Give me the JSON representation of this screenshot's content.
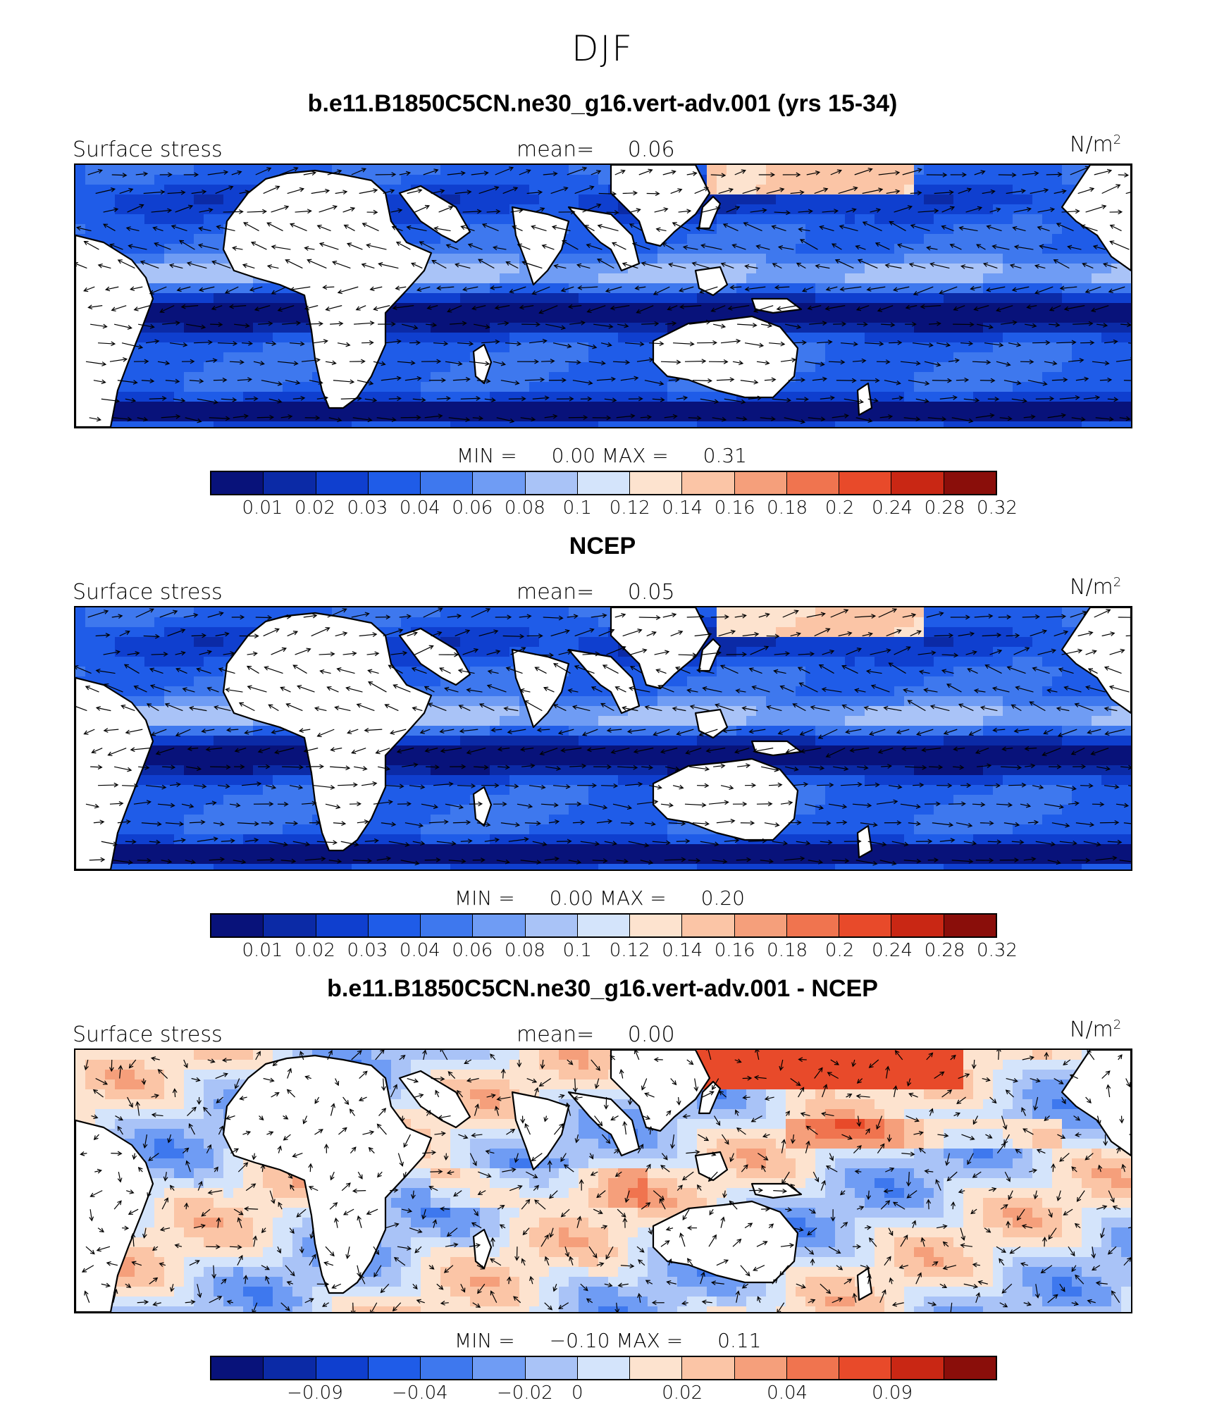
{
  "season": "DJF",
  "panels": [
    {
      "title": "b.e11.B1850C5CN.ne30_g16.vert-adv.001 (yrs 15-34)",
      "left_label": "Surface stress",
      "mean_label": "mean=",
      "mean_value": "0.06",
      "units_base": "N/m",
      "units_sup": "2",
      "min_label": "MIN =",
      "min_value": "0.00",
      "max_label": "MAX =",
      "max_value": "0.31",
      "scale": "abs",
      "colorbar_ticks": [
        "0.01",
        "0.02",
        "0.03",
        "0.04",
        "0.06",
        "0.08",
        "0.1",
        "0.12",
        "0.14",
        "0.16",
        "0.18",
        "0.2",
        "0.24",
        "0.28",
        "0.32"
      ]
    },
    {
      "title": "NCEP",
      "left_label": "Surface stress",
      "mean_label": "mean=",
      "mean_value": "0.05",
      "units_base": "N/m",
      "units_sup": "2",
      "min_label": "MIN =",
      "min_value": "0.00",
      "max_label": "MAX =",
      "max_value": "0.20",
      "scale": "abs",
      "colorbar_ticks": [
        "0.01",
        "0.02",
        "0.03",
        "0.04",
        "0.06",
        "0.08",
        "0.1",
        "0.12",
        "0.14",
        "0.16",
        "0.18",
        "0.2",
        "0.24",
        "0.28",
        "0.32"
      ]
    },
    {
      "title": "b.e11.B1850C5CN.ne30_g16.vert-adv.001 - NCEP",
      "left_label": "Surface stress",
      "mean_label": "mean=",
      "mean_value": "0.00",
      "units_base": "N/m",
      "units_sup": "2",
      "min_label": "MIN =",
      "min_value": "−0.10",
      "max_label": "MAX =",
      "max_value": "0.11",
      "scale": "diff",
      "colorbar_ticks": [
        "−0.09",
        "−0.04",
        "−0.02",
        "0",
        "0.02",
        "0.04",
        "0.09"
      ]
    }
  ],
  "colormap": [
    "#08127a",
    "#0b2aa6",
    "#0f3fcf",
    "#1f5ce8",
    "#3e78ee",
    "#6f9cf4",
    "#a9c3f7",
    "#d4e4fb",
    "#fde3cf",
    "#fbc5a6",
    "#f59f7b",
    "#f0744f",
    "#e84a2a",
    "#c92714",
    "#8a0e0a"
  ],
  "continent_color": "#ffffff",
  "arrow_color": "#000000"
}
